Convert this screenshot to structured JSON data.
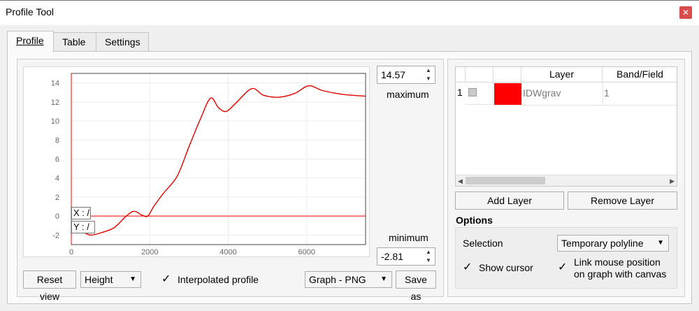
{
  "window": {
    "title": "Profile Tool",
    "close_glyph": "✕"
  },
  "tabs": [
    {
      "label": "Profile"
    },
    {
      "label": "Table"
    },
    {
      "label": "Settings"
    }
  ],
  "plot": {
    "max_value": "14.57",
    "max_label": "maximum",
    "min_value": "-2.81",
    "min_label": "minimum",
    "cursor_x_label": "X : /",
    "cursor_y_label": "Y : /",
    "line_color": "#ff0000"
  },
  "chart_data": {
    "type": "line",
    "xlim": [
      0,
      7500
    ],
    "ylim": [
      -3,
      15
    ],
    "x_ticks": [
      0,
      2000,
      4000,
      6000
    ],
    "y_ticks": [
      -2,
      0,
      2,
      4,
      6,
      8,
      10,
      12,
      14
    ],
    "series": [
      {
        "color": "#e00000",
        "x": [
          0,
          300,
          500,
          800,
          1100,
          1400,
          1600,
          1800,
          1950,
          2100,
          2350,
          2700,
          3000,
          3300,
          3550,
          3750,
          3950,
          4200,
          4600,
          4900,
          5300,
          5700,
          6050,
          6400,
          6900,
          7500
        ],
        "y": [
          -1.3,
          -1.7,
          -2.0,
          -1.7,
          -1.2,
          0.0,
          0.5,
          0.1,
          0.0,
          1.0,
          2.4,
          4.2,
          7.3,
          10.3,
          12.4,
          11.4,
          11.0,
          11.9,
          13.4,
          12.7,
          12.5,
          12.9,
          13.7,
          13.2,
          12.8,
          12.6
        ]
      }
    ]
  },
  "bottom_controls": {
    "reset_view_label": "Reset view",
    "height_combo_value": "Height",
    "interpolated_label": "Interpolated profile",
    "export_combo_value": "Graph - PNG",
    "save_as_label": "Save as"
  },
  "layers_table": {
    "headers": [
      "Layer",
      "Band/Field"
    ],
    "rows": [
      {
        "num": "1",
        "color": "#ff0000",
        "layer": "IDWgrav",
        "band": "1"
      }
    ]
  },
  "layer_buttons": {
    "add": "Add Layer",
    "remove": "Remove Layer"
  },
  "options": {
    "title": "Options",
    "selection_label": "Selection",
    "selection_value": "Temporary polyline",
    "show_cursor_label": "Show cursor",
    "link_mouse_label_line1": "Link mouse position",
    "link_mouse_label_line2": "on graph with canvas"
  },
  "check_glyph": "✓"
}
